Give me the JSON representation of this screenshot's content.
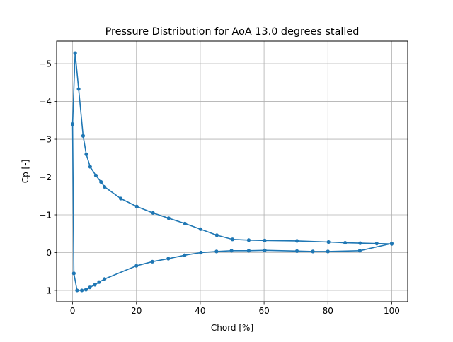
{
  "chart_data": {
    "type": "line",
    "title": "Pressure Distribution for AoA 13.0 degrees stalled",
    "xlabel": "Chord [%]",
    "ylabel": "Cp [-]",
    "xlim": [
      -5,
      105
    ],
    "ylim": [
      1.3,
      -5.6
    ],
    "y_inverted": true,
    "grid": true,
    "x_ticks": [
      0,
      20,
      40,
      60,
      80,
      100
    ],
    "x_tick_labels": [
      "0",
      "20",
      "40",
      "60",
      "80",
      "100"
    ],
    "y_ticks": [
      -5,
      -4,
      -3,
      -2,
      -1,
      0,
      1
    ],
    "y_tick_labels": [
      "−5",
      "−4",
      "−3",
      "−2",
      "−1",
      "0",
      "1"
    ],
    "series": [
      {
        "color": "#1f77b4",
        "marker": "circle",
        "x": [
          100,
          95.3,
          90.1,
          85.4,
          80.2,
          70.3,
          60.2,
          55.2,
          50.1,
          45.2,
          40.1,
          35.2,
          30.1,
          25.2,
          20.1,
          15.1,
          10.0,
          8.9,
          7.3,
          5.5,
          4.3,
          3.3,
          1.9,
          0.8,
          0.0,
          0.4,
          1.4,
          2.9,
          4.2,
          5.4,
          7.0,
          8.3,
          10.0,
          20.0,
          25.0,
          30.0,
          35.1,
          40.2,
          45.1,
          49.8,
          55.2,
          60.2,
          70.3,
          75.3,
          80.0,
          90.0,
          100.0
        ],
        "y": [
          -0.23,
          -0.24,
          -0.25,
          -0.26,
          -0.28,
          -0.31,
          -0.32,
          -0.33,
          -0.35,
          -0.46,
          -0.62,
          -0.77,
          -0.91,
          -1.05,
          -1.22,
          -1.43,
          -1.74,
          -1.87,
          -2.04,
          -2.27,
          -2.6,
          -3.09,
          -4.33,
          -5.28,
          -3.4,
          0.55,
          1.0,
          1.0,
          0.98,
          0.92,
          0.85,
          0.78,
          0.7,
          0.35,
          0.24,
          0.16,
          0.07,
          0.0,
          -0.03,
          -0.05,
          -0.05,
          -0.06,
          -0.04,
          -0.03,
          -0.03,
          -0.05,
          -0.24
        ]
      }
    ]
  }
}
